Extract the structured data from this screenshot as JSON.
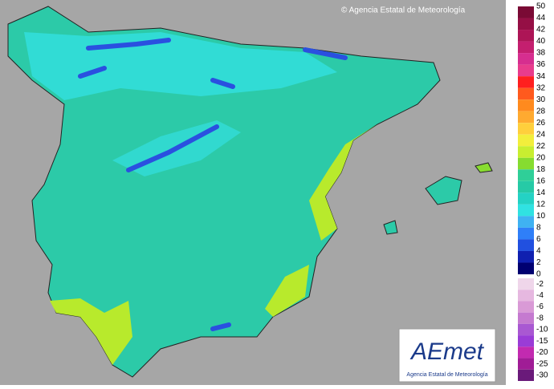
{
  "credit": "© Agencia Estatal de Meteorología",
  "legend": {
    "scale": [
      50,
      44,
      42,
      40,
      38,
      36,
      34,
      32,
      30,
      28,
      26,
      24,
      22,
      20,
      18,
      16,
      14,
      12,
      10,
      8,
      6,
      4,
      2,
      0
    ],
    "colors": [
      "#7a0a35",
      "#950f45",
      "#ad1556",
      "#c41f6f",
      "#d62e8f",
      "#e83c8c",
      "#ff1f1f",
      "#ff5a1e",
      "#ff8a1e",
      "#ffaa30",
      "#ffcf3c",
      "#f2ee3c",
      "#c8ee30",
      "#86dc30",
      "#2fcf98",
      "#26caa6",
      "#24d2c4",
      "#30e2e2",
      "#3fb2f2",
      "#2f7ff8",
      "#2150e0",
      "#1020b0",
      "#000070"
    ],
    "negative_scale": [
      -2,
      -4,
      -6,
      -8,
      -10,
      -15,
      -20,
      -25,
      -30
    ],
    "negative_colors": [
      "#efd6ea",
      "#e6b8e0",
      "#d99ad6",
      "#c57ad0",
      "#a958d2",
      "#9a3cd6",
      "#c22ab0",
      "#a01c96",
      "#6a1a7a"
    ]
  },
  "logo": {
    "name": "AEmet",
    "subtitle": "Agencia Estatal de Meteorología"
  }
}
